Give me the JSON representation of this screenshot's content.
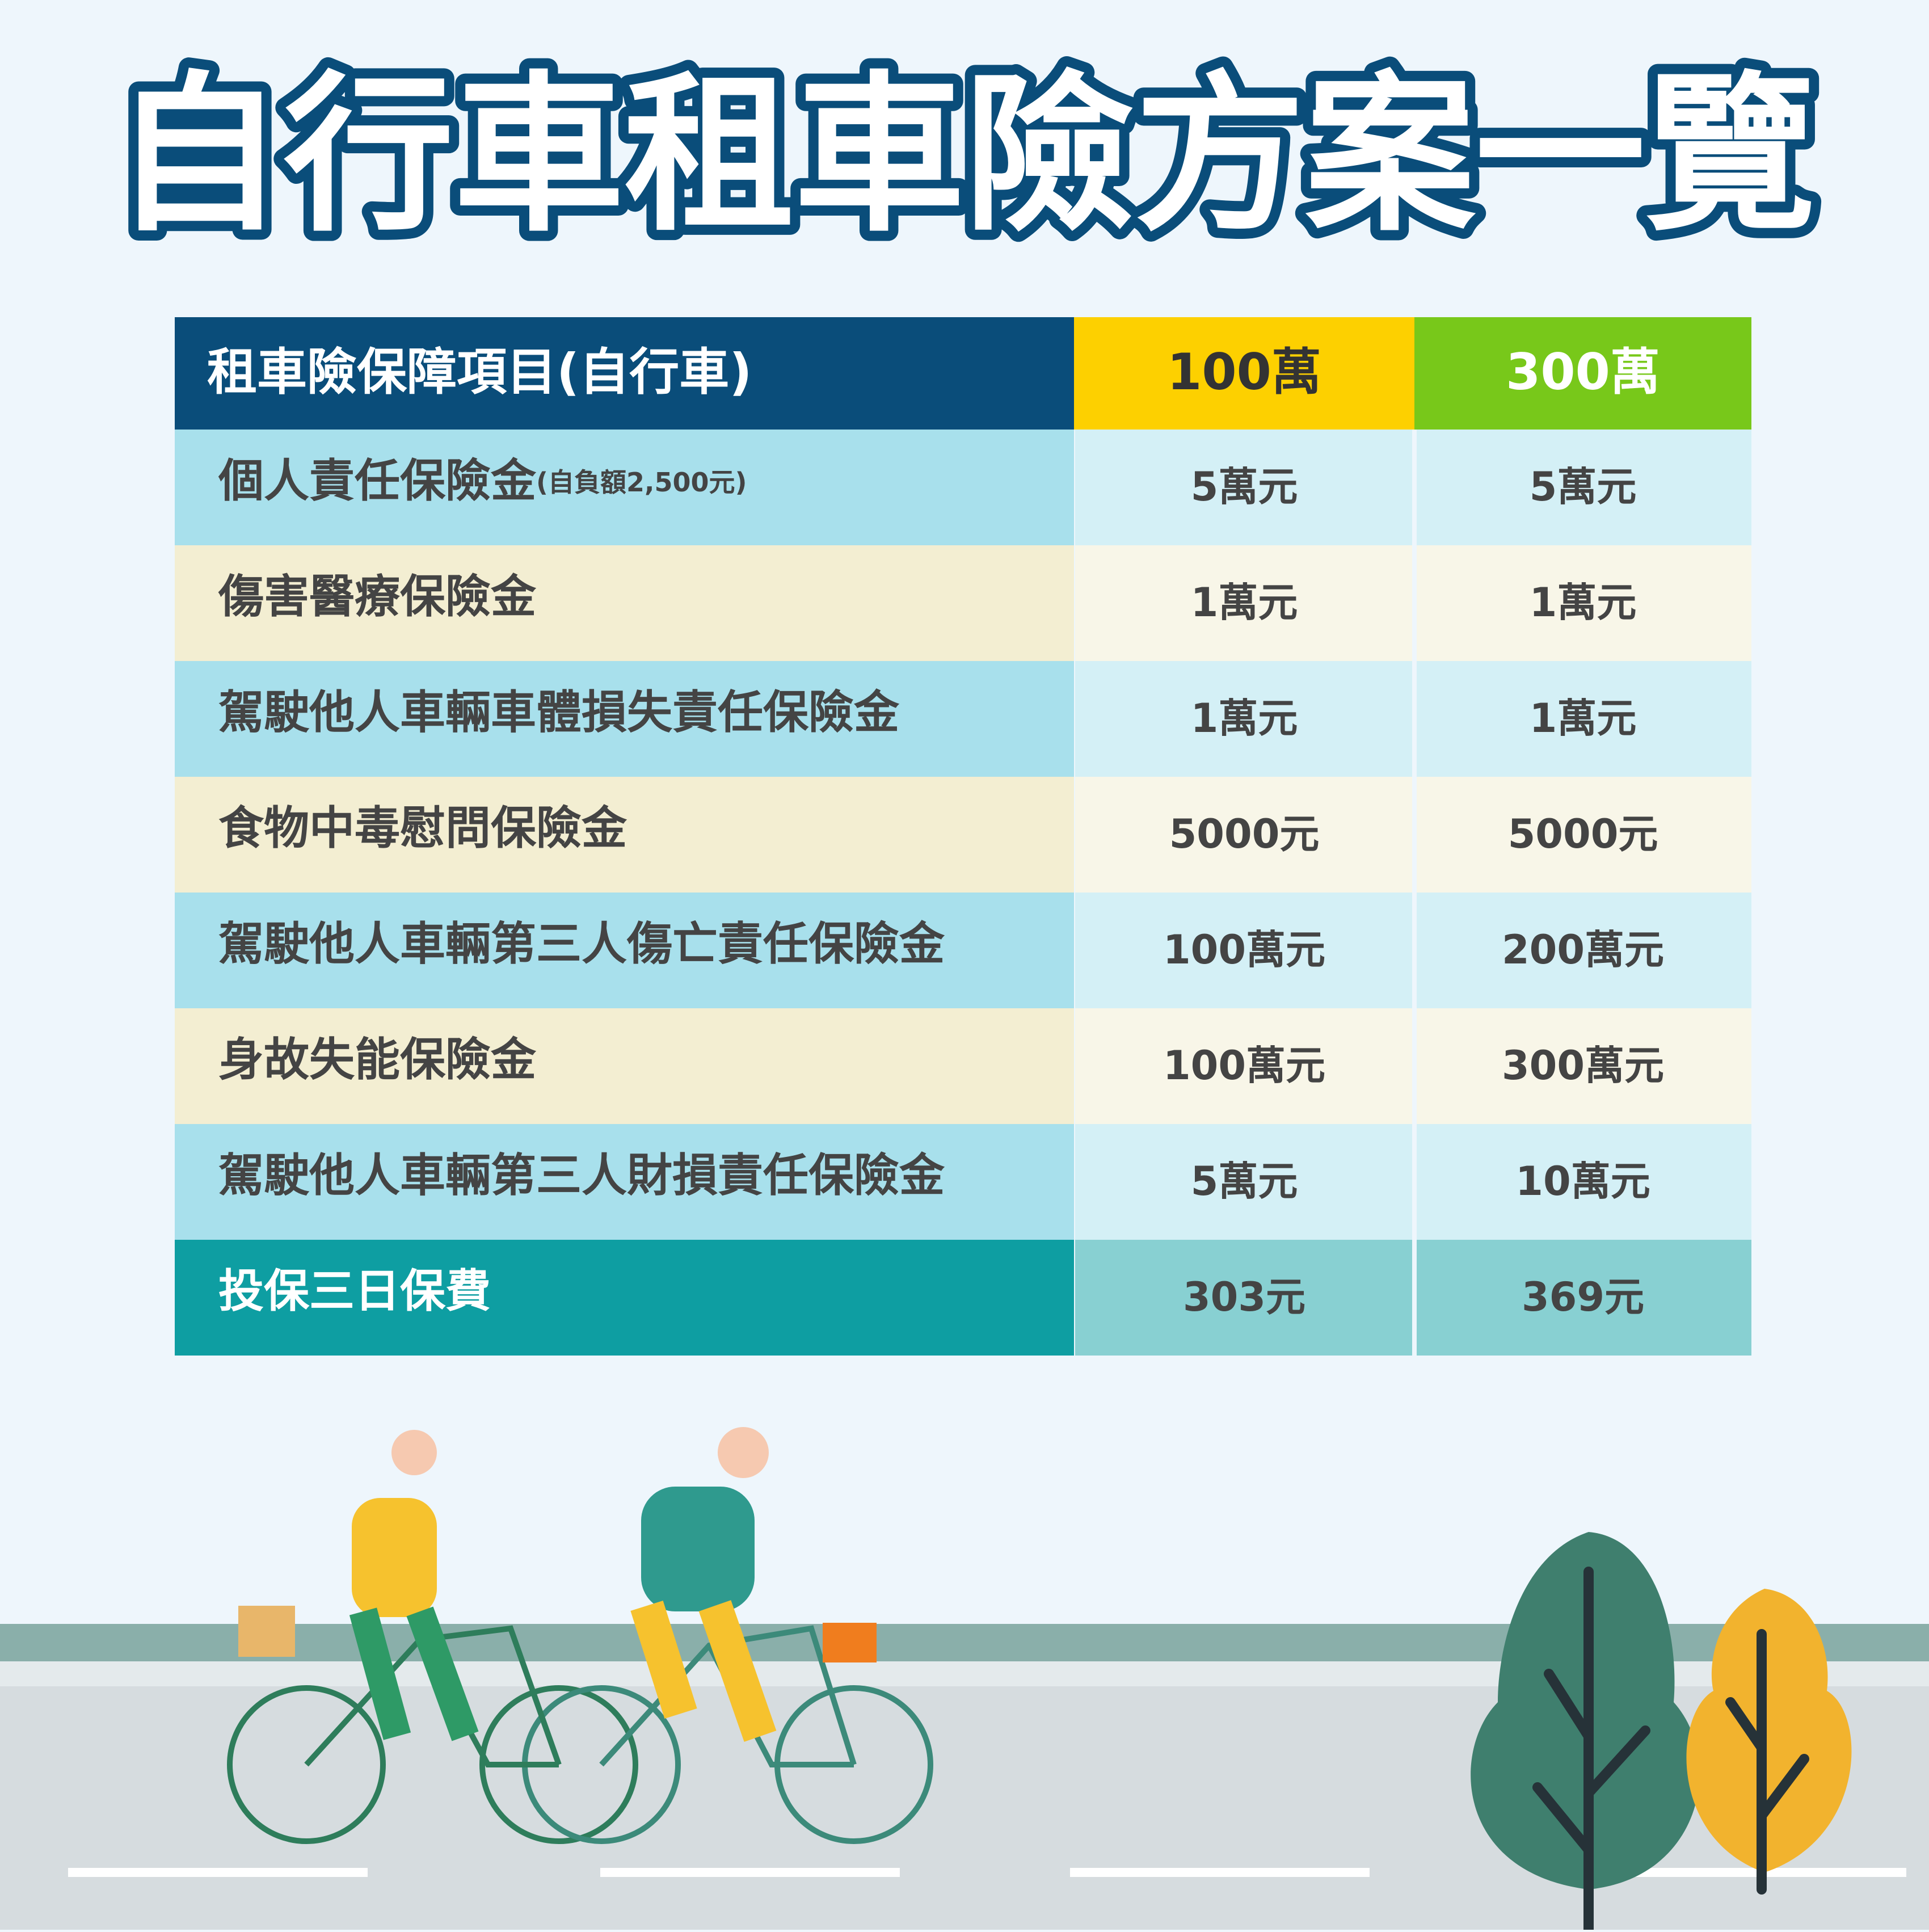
{
  "title": "自行車租車險方案一覽",
  "table": {
    "header": [
      "租車險保障項目(自行車)",
      "100萬",
      "300萬"
    ],
    "rows": [
      {
        "item": "個人責任保險金",
        "note": "(自負額2,500元)",
        "values": [
          "5萬元",
          "5萬元"
        ]
      },
      {
        "item": "傷害醫療保險金",
        "values": [
          "1萬元",
          "1萬元"
        ]
      },
      {
        "item": "駕駛他人車輛車體損失責任保險金",
        "values": [
          "1萬元",
          "1萬元"
        ]
      },
      {
        "item": "食物中毒慰問保險金",
        "values": [
          "5000元",
          "5000元"
        ]
      },
      {
        "item": "駕駛他人車輛第三人傷亡責任保險金",
        "values": [
          "100萬元",
          "200萬元"
        ]
      },
      {
        "item": "身故失能保險金",
        "values": [
          "100萬元",
          "300萬元"
        ]
      },
      {
        "item": "駕駛他人車輛第三人財損責任保險金",
        "values": [
          "5萬元",
          "10萬元"
        ]
      }
    ],
    "footer": {
      "item": "投保三日保費",
      "values": [
        "303元",
        "369元"
      ]
    }
  }
}
